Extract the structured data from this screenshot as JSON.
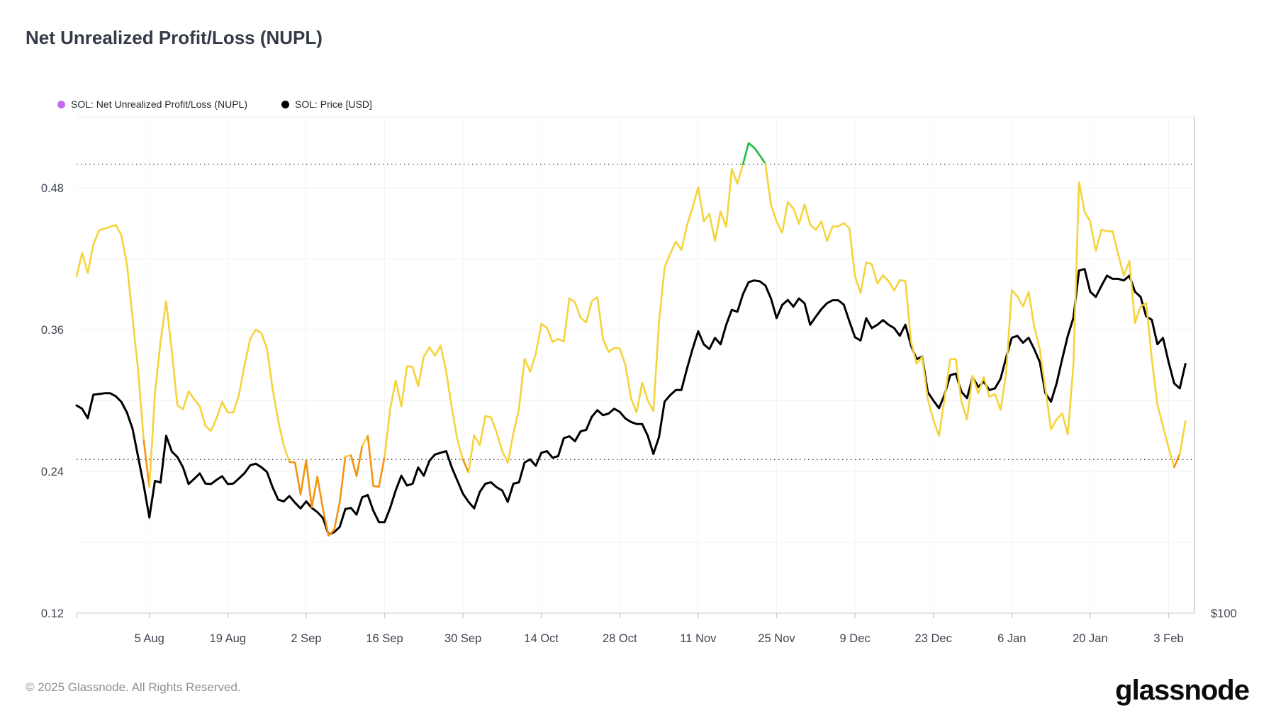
{
  "title": "Net Unrealized Profit/Loss (NUPL)",
  "legend": [
    {
      "label": "SOL: Net Unrealized Profit/Loss (NUPL)",
      "dot_color": "#C06CF0"
    },
    {
      "label": "SOL: Price [USD]",
      "dot_color": "#000000"
    }
  ],
  "footer": {
    "copyright": "© 2025 Glassnode. All Rights Reserved.",
    "logo_text": "glassnode"
  },
  "chart_data": {
    "type": "line",
    "x_unit": "day_index",
    "x_tick_days": [
      13,
      27,
      41,
      55,
      69,
      83,
      97,
      111,
      125,
      139,
      153,
      167,
      181,
      195
    ],
    "x_tick_labels": [
      "5 Aug",
      "19 Aug",
      "2 Sep",
      "16 Sep",
      "30 Sep",
      "14 Oct",
      "28 Oct",
      "11 Nov",
      "25 Nov",
      "9 Dec",
      "23 Dec",
      "6 Jan",
      "20 Jan",
      "3 Feb"
    ],
    "y_axis": {
      "ticks": [
        0.12,
        0.24,
        0.36,
        0.48
      ],
      "minor_gridlines": [
        0.18,
        0.3,
        0.42
      ],
      "range": [
        0.12,
        0.54
      ],
      "guide_dotted_levels": [
        0.25,
        0.5
      ]
    },
    "right_axis": {
      "tick_label": "$100",
      "tick_value": 100,
      "scale": "log"
    },
    "series": [
      {
        "name": "SOL: Net Unrealized Profit/Loss (NUPL)",
        "zone_colors": {
          "below_0_25": "#F6930E",
          "between_0_25_and_0_5": "#F5D33B",
          "above_0_5": "#1CBE3F"
        },
        "values": [
          0.405,
          0.425,
          0.408,
          0.432,
          0.444,
          0.4455,
          0.447,
          0.4485,
          0.44,
          0.415,
          0.37,
          0.325,
          0.266,
          0.2268,
          0.306,
          0.35,
          0.384,
          0.342,
          0.296,
          0.2925,
          0.3078,
          0.301,
          0.2952,
          0.2785,
          0.2742,
          0.285,
          0.2988,
          0.2898,
          0.2898,
          0.305,
          0.33,
          0.352,
          0.36,
          0.357,
          0.344,
          0.31,
          0.283,
          0.262,
          0.248,
          0.2475,
          0.2205,
          0.2495,
          0.2095,
          0.2355,
          0.208,
          0.1855,
          0.1905,
          0.214,
          0.2525,
          0.2535,
          0.236,
          0.2615,
          0.27,
          0.2275,
          0.227,
          0.2525,
          0.293,
          0.317,
          0.295,
          0.329,
          0.3285,
          0.312,
          0.337,
          0.345,
          0.338,
          0.3465,
          0.3245,
          0.294,
          0.2665,
          0.25,
          0.239,
          0.2705,
          0.262,
          0.287,
          0.2856,
          0.2732,
          0.2572,
          0.2473,
          0.272,
          0.293,
          0.3354,
          0.3243,
          0.3396,
          0.3648,
          0.3615,
          0.3495,
          0.352,
          0.35,
          0.3865,
          0.383,
          0.37,
          0.366,
          0.384,
          0.3875,
          0.352,
          0.341,
          0.3445,
          0.344,
          0.33,
          0.302,
          0.29,
          0.315,
          0.3,
          0.291,
          0.366,
          0.4125,
          0.424,
          0.4345,
          0.4275,
          0.448,
          0.4635,
          0.4805,
          0.4515,
          0.458,
          0.435,
          0.46,
          0.447,
          0.496,
          0.4834,
          0.5,
          0.5178,
          0.514,
          0.5075,
          0.5005,
          0.4655,
          0.4515,
          0.442,
          0.468,
          0.4626,
          0.4495,
          0.466,
          0.4487,
          0.4446,
          0.4515,
          0.4349,
          0.4473,
          0.4473,
          0.4501,
          0.4459,
          0.405,
          0.391,
          0.4168,
          0.4154,
          0.399,
          0.406,
          0.401,
          0.393,
          0.402,
          0.401,
          0.35,
          0.331,
          0.337,
          0.301,
          0.2836,
          0.27,
          0.302,
          0.335,
          0.335,
          0.299,
          0.284,
          0.321,
          0.306,
          0.32,
          0.303,
          0.3055,
          0.292,
          0.324,
          0.3934,
          0.388,
          0.3795,
          0.392,
          0.3627,
          0.3433,
          0.31,
          0.2755,
          0.284,
          0.289,
          0.2714,
          0.33,
          0.4847,
          0.4598,
          0.4515,
          0.4266,
          0.4446,
          0.4432,
          0.4432,
          0.4237,
          0.4057,
          0.418,
          0.3656,
          0.3795,
          0.3823,
          0.335,
          0.2963,
          0.2783,
          0.26,
          0.2436,
          0.2547,
          0.2824
        ]
      },
      {
        "name": "SOL: Price [USD]",
        "color": "#000000",
        "unit": "USD",
        "values": [
          179.8,
          178.1,
          173.4,
          185.3,
          185.7,
          186.1,
          186.1,
          184.5,
          181.6,
          176.2,
          168.3,
          155.4,
          143.4,
          131.0,
          145.3,
          144.6,
          165.0,
          157.9,
          155.4,
          151.0,
          144.0,
          146.1,
          148.4,
          144.2,
          144.0,
          145.7,
          147.2,
          144.0,
          144.2,
          146.3,
          148.5,
          151.8,
          152.5,
          151.0,
          149.0,
          142.7,
          137.8,
          137.1,
          139.2,
          136.6,
          134.4,
          137.1,
          134.6,
          133.0,
          130.8,
          124.9,
          125.7,
          127.6,
          134.2,
          134.6,
          132.1,
          138.7,
          139.6,
          133.5,
          129.3,
          129.3,
          134.6,
          141.5,
          147.4,
          143.4,
          144.1,
          150.9,
          147.4,
          153.7,
          156.5,
          157.3,
          158.0,
          150.9,
          145.4,
          140.1,
          136.9,
          134.4,
          140.8,
          144.1,
          144.7,
          142.7,
          141.4,
          136.9,
          144.1,
          144.7,
          153.0,
          154.4,
          151.6,
          157.3,
          158.0,
          155.1,
          155.8,
          163.9,
          164.8,
          162.5,
          167.1,
          167.8,
          174.1,
          177.4,
          174.9,
          175.7,
          178.1,
          176.5,
          173.3,
          171.6,
          170.6,
          170.6,
          165.0,
          156.8,
          164.4,
          181.7,
          185.1,
          187.8,
          187.8,
          199.5,
          210.9,
          221.7,
          213.7,
          210.8,
          217.6,
          213.7,
          225.8,
          235.5,
          234.3,
          246.2,
          254.7,
          255.9,
          255.3,
          252.3,
          243.2,
          230.1,
          238.8,
          242.2,
          237.7,
          243.2,
          239.9,
          225.8,
          231.0,
          236.0,
          240.0,
          242.0,
          242.0,
          239.0,
          228.0,
          218.0,
          216.0,
          230.0,
          223.7,
          225.8,
          228.8,
          225.8,
          223.7,
          218.9,
          225.8,
          213.0,
          204.9,
          206.4,
          186.7,
          182.3,
          178.4,
          185.4,
          195.8,
          196.7,
          186.9,
          183.5,
          194.8,
          189.5,
          192.2,
          187.8,
          188.7,
          193.9,
          206.0,
          217.7,
          218.8,
          214.6,
          217.7,
          210.8,
          203.2,
          186.1,
          181.7,
          191.3,
          205.0,
          218.8,
          230.3,
          263.2,
          264.3,
          247.9,
          244.3,
          252.0,
          259.4,
          257.1,
          257.1,
          255.9,
          259.4,
          247.9,
          244.3,
          231.2,
          229.0,
          213.7,
          217.6,
          203.2,
          191.3,
          188.7,
          202.2
        ]
      }
    ]
  }
}
